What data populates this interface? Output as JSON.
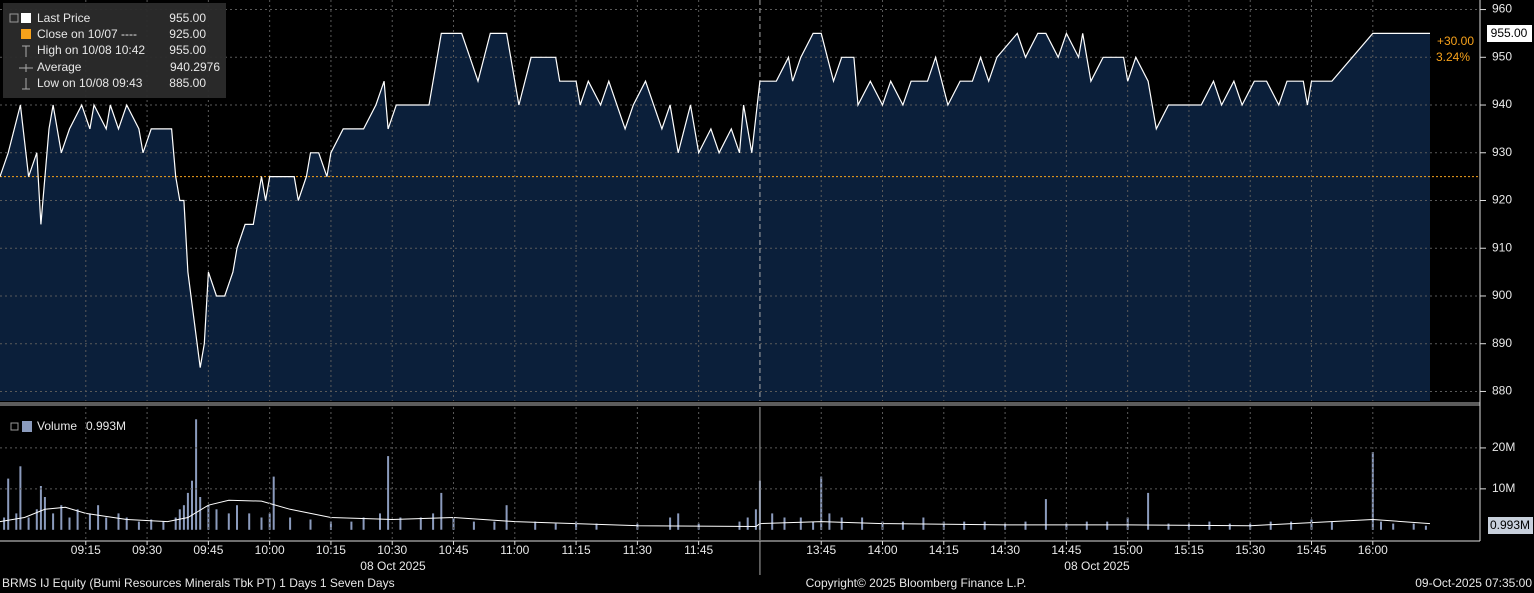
{
  "chart_data": [
    {
      "type": "area",
      "xlim": [
        "08:54",
        "16:14"
      ],
      "x_break": [
        "12:00",
        "13:30"
      ],
      "ylim": [
        878,
        962
      ],
      "yticks": [
        880,
        890,
        900,
        910,
        920,
        930,
        940,
        950,
        960
      ],
      "grid": true,
      "series": [
        {
          "name": "Last Price",
          "color": "#ffffff",
          "fill": "#0b1f3a",
          "x": [
            "08:54",
            "08:56",
            "08:59",
            "09:01",
            "09:03",
            "09:04",
            "09:06",
            "09:07",
            "09:09",
            "09:11",
            "09:14",
            "09:16",
            "09:17",
            "09:20",
            "09:21",
            "09:23",
            "09:25",
            "09:28",
            "09:29",
            "09:31",
            "09:36",
            "09:37",
            "09:38",
            "09:39",
            "09:40",
            "09:43",
            "09:44",
            "09:45",
            "09:47",
            "09:49",
            "09:51",
            "09:52",
            "09:54",
            "09:56",
            "09:58",
            "09:59",
            "10:00",
            "10:06",
            "10:07",
            "10:09",
            "10:10",
            "10:12",
            "10:14",
            "10:15",
            "10:18",
            "10:23",
            "10:26",
            "10:28",
            "10:29",
            "10:31",
            "10:39",
            "10:42",
            "10:47",
            "10:49",
            "10:51",
            "10:54",
            "10:58",
            "11:00",
            "11:01",
            "11:04",
            "11:10",
            "11:11",
            "11:15",
            "11:16",
            "11:18",
            "11:21",
            "11:23",
            "11:27",
            "11:29",
            "11:32",
            "11:36",
            "11:38",
            "11:40",
            "11:43",
            "11:45",
            "11:48",
            "11:50",
            "11:53",
            "11:55",
            "11:56",
            "11:58",
            "13:30",
            "13:34",
            "13:37",
            "13:38",
            "13:40",
            "13:43",
            "13:45",
            "13:48",
            "13:50",
            "13:53",
            "13:54",
            "13:57",
            "14:00",
            "14:02",
            "14:05",
            "14:07",
            "14:11",
            "14:13",
            "14:16",
            "14:19",
            "14:22",
            "14:24",
            "14:26",
            "14:28",
            "14:33",
            "14:35",
            "14:38",
            "14:40",
            "14:43",
            "14:45",
            "14:48",
            "14:49",
            "14:51",
            "14:54",
            "14:59",
            "15:00",
            "15:02",
            "15:05",
            "15:07",
            "15:10",
            "15:18",
            "15:21",
            "15:23",
            "15:26",
            "15:28",
            "15:31",
            "15:34",
            "15:37",
            "15:39",
            "15:43",
            "15:44",
            "15:45",
            "15:50",
            "16:00",
            "16:14"
          ],
          "values": [
            925,
            930,
            940,
            925,
            930,
            915,
            935,
            940,
            930,
            935,
            940,
            935,
            940,
            935,
            940,
            935,
            940,
            935,
            930,
            935,
            935,
            925,
            920,
            920,
            905,
            885,
            890,
            905,
            900,
            900,
            905,
            910,
            915,
            915,
            925,
            920,
            925,
            925,
            920,
            925,
            930,
            930,
            925,
            930,
            935,
            935,
            940,
            945,
            935,
            940,
            940,
            955,
            955,
            950,
            945,
            955,
            955,
            945,
            940,
            950,
            950,
            945,
            945,
            940,
            945,
            940,
            945,
            935,
            940,
            945,
            935,
            940,
            930,
            940,
            930,
            935,
            930,
            935,
            930,
            940,
            930,
            945,
            945,
            950,
            945,
            950,
            955,
            955,
            945,
            950,
            950,
            940,
            945,
            940,
            945,
            940,
            945,
            945,
            950,
            940,
            945,
            945,
            950,
            945,
            950,
            955,
            950,
            955,
            955,
            950,
            955,
            950,
            955,
            945,
            950,
            950,
            945,
            950,
            945,
            935,
            940,
            940,
            945,
            940,
            945,
            940,
            945,
            945,
            940,
            945,
            945,
            940,
            945,
            945,
            955,
            955
          ]
        }
      ],
      "last_value": {
        "value": 955,
        "label": "955.00"
      },
      "change": {
        "value": 30,
        "label": "+30.00"
      },
      "change_pct": {
        "value": 3.24,
        "label": "3.24%"
      },
      "stats": [
        {
          "label": "Close on 10/07 ----",
          "value": 925,
          "value_label": "925.00",
          "color": "#f7a21b"
        },
        {
          "label": "High on 10/08 10:42",
          "value": 955,
          "value_label": "955.00"
        },
        {
          "label": "Average",
          "value": 940.2976
        },
        {
          "label": "Low on 10/08 09:43",
          "value": 885,
          "value_label": "885.00"
        }
      ]
    },
    {
      "type": "bar",
      "xlim": [
        "08:54",
        "16:14"
      ],
      "x_break": [
        "12:00",
        "13:30"
      ],
      "xticks": [
        "09:15",
        "09:30",
        "09:45",
        "10:00",
        "10:15",
        "10:30",
        "10:45",
        "11:00",
        "11:15",
        "11:30",
        "11:45",
        "13:45",
        "14:00",
        "14:15",
        "14:30",
        "14:45",
        "15:00",
        "15:15",
        "15:30",
        "15:45",
        "16:00"
      ],
      "x_date_labels": [
        "08 Oct 2025",
        "08 Oct 2025"
      ],
      "ylim": [
        -2500000,
        30000000
      ],
      "yticks": [
        {
          "value": 10000000,
          "label": "10M"
        },
        {
          "value": 20000000,
          "label": "20M"
        }
      ],
      "grid": true,
      "series": [
        {
          "name": "Volume",
          "color": "#8b9bbd",
          "x": [
            "08:55",
            "08:56",
            "08:58",
            "08:59",
            "09:01",
            "09:03",
            "09:04",
            "09:05",
            "09:07",
            "09:09",
            "09:11",
            "09:13",
            "09:16",
            "09:18",
            "09:20",
            "09:23",
            "09:25",
            "09:28",
            "09:31",
            "09:34",
            "09:37",
            "09:38",
            "09:39",
            "09:40",
            "09:41",
            "09:42",
            "09:43",
            "09:45",
            "09:47",
            "09:50",
            "09:52",
            "09:55",
            "09:58",
            "10:00",
            "10:01",
            "10:05",
            "10:10",
            "10:15",
            "10:20",
            "10:23",
            "10:27",
            "10:29",
            "10:32",
            "10:37",
            "10:40",
            "10:42",
            "10:45",
            "10:50",
            "10:55",
            "10:58",
            "11:05",
            "11:10",
            "11:15",
            "11:20",
            "11:30",
            "11:38",
            "11:40",
            "11:45",
            "11:55",
            "11:57",
            "11:59",
            "13:30",
            "13:33",
            "13:36",
            "13:40",
            "13:43",
            "13:45",
            "13:47",
            "13:50",
            "13:55",
            "14:00",
            "14:05",
            "14:10",
            "14:15",
            "14:20",
            "14:25",
            "14:30",
            "14:35",
            "14:40",
            "14:45",
            "14:50",
            "14:55",
            "15:00",
            "15:05",
            "15:10",
            "15:15",
            "15:20",
            "15:25",
            "15:30",
            "15:35",
            "15:40",
            "15:45",
            "15:50",
            "16:00",
            "16:02",
            "16:05",
            "16:10",
            "16:13"
          ],
          "values": [
            3000000,
            12500000,
            4000000,
            15500000,
            3000000,
            5000000,
            10700000,
            8000000,
            4000000,
            6000000,
            3000000,
            5000000,
            4000000,
            6000000,
            3000000,
            4000000,
            3000000,
            2000000,
            2500000,
            2000000,
            3000000,
            5000000,
            6000000,
            9000000,
            12000000,
            27000000,
            8000000,
            6000000,
            5000000,
            4000000,
            6000000,
            4000000,
            3000000,
            4000000,
            13000000,
            3000000,
            2500000,
            2000000,
            2000000,
            3000000,
            4000000,
            18000000,
            3000000,
            3000000,
            4000000,
            9000000,
            3000000,
            2000000,
            2000000,
            6000000,
            2000000,
            1500000,
            2000000,
            1500000,
            1500000,
            3000000,
            4000000,
            1500000,
            2000000,
            3000000,
            5000000,
            12000000,
            4000000,
            3000000,
            3000000,
            2000000,
            13000000,
            4000000,
            3000000,
            3000000,
            2000000,
            2000000,
            3000000,
            2000000,
            2000000,
            2000000,
            1500000,
            2000000,
            7500000,
            1500000,
            2000000,
            2000000,
            3000000,
            9000000,
            1500000,
            1500000,
            2000000,
            1500000,
            1500000,
            2000000,
            2000000,
            2500000,
            2000000,
            19000000,
            2000000,
            1500000,
            1500000,
            993000
          ]
        }
      ],
      "average": {
        "color": "#ffffff",
        "x": [
          "08:54",
          "09:00",
          "09:05",
          "09:10",
          "09:15",
          "09:25",
          "09:35",
          "09:40",
          "09:45",
          "09:50",
          "09:58",
          "10:05",
          "10:15",
          "10:30",
          "10:45",
          "11:00",
          "11:30",
          "11:59",
          "13:30",
          "13:45",
          "14:00",
          "14:30",
          "15:00",
          "15:30",
          "16:00",
          "16:14"
        ],
        "values": [
          2000000,
          3000000,
          5000000,
          5500000,
          4000000,
          2500000,
          2000000,
          3000000,
          6000000,
          7200000,
          7000000,
          5000000,
          3000000,
          2500000,
          3000000,
          2000000,
          1000000,
          800000,
          1500000,
          2000000,
          1500000,
          1200000,
          1200000,
          1000000,
          2500000,
          1500000
        ]
      },
      "last_value": {
        "value": 993000,
        "label": "0.993M"
      }
    }
  ],
  "footer": {
    "left": "BRMS IJ Equity (Bumi Resources Minerals Tbk PT) 1 Days 1 Seven Days",
    "center": "Copyright© 2025 Bloomberg Finance L.P.",
    "right": "09-Oct-2025 07:35:00"
  }
}
